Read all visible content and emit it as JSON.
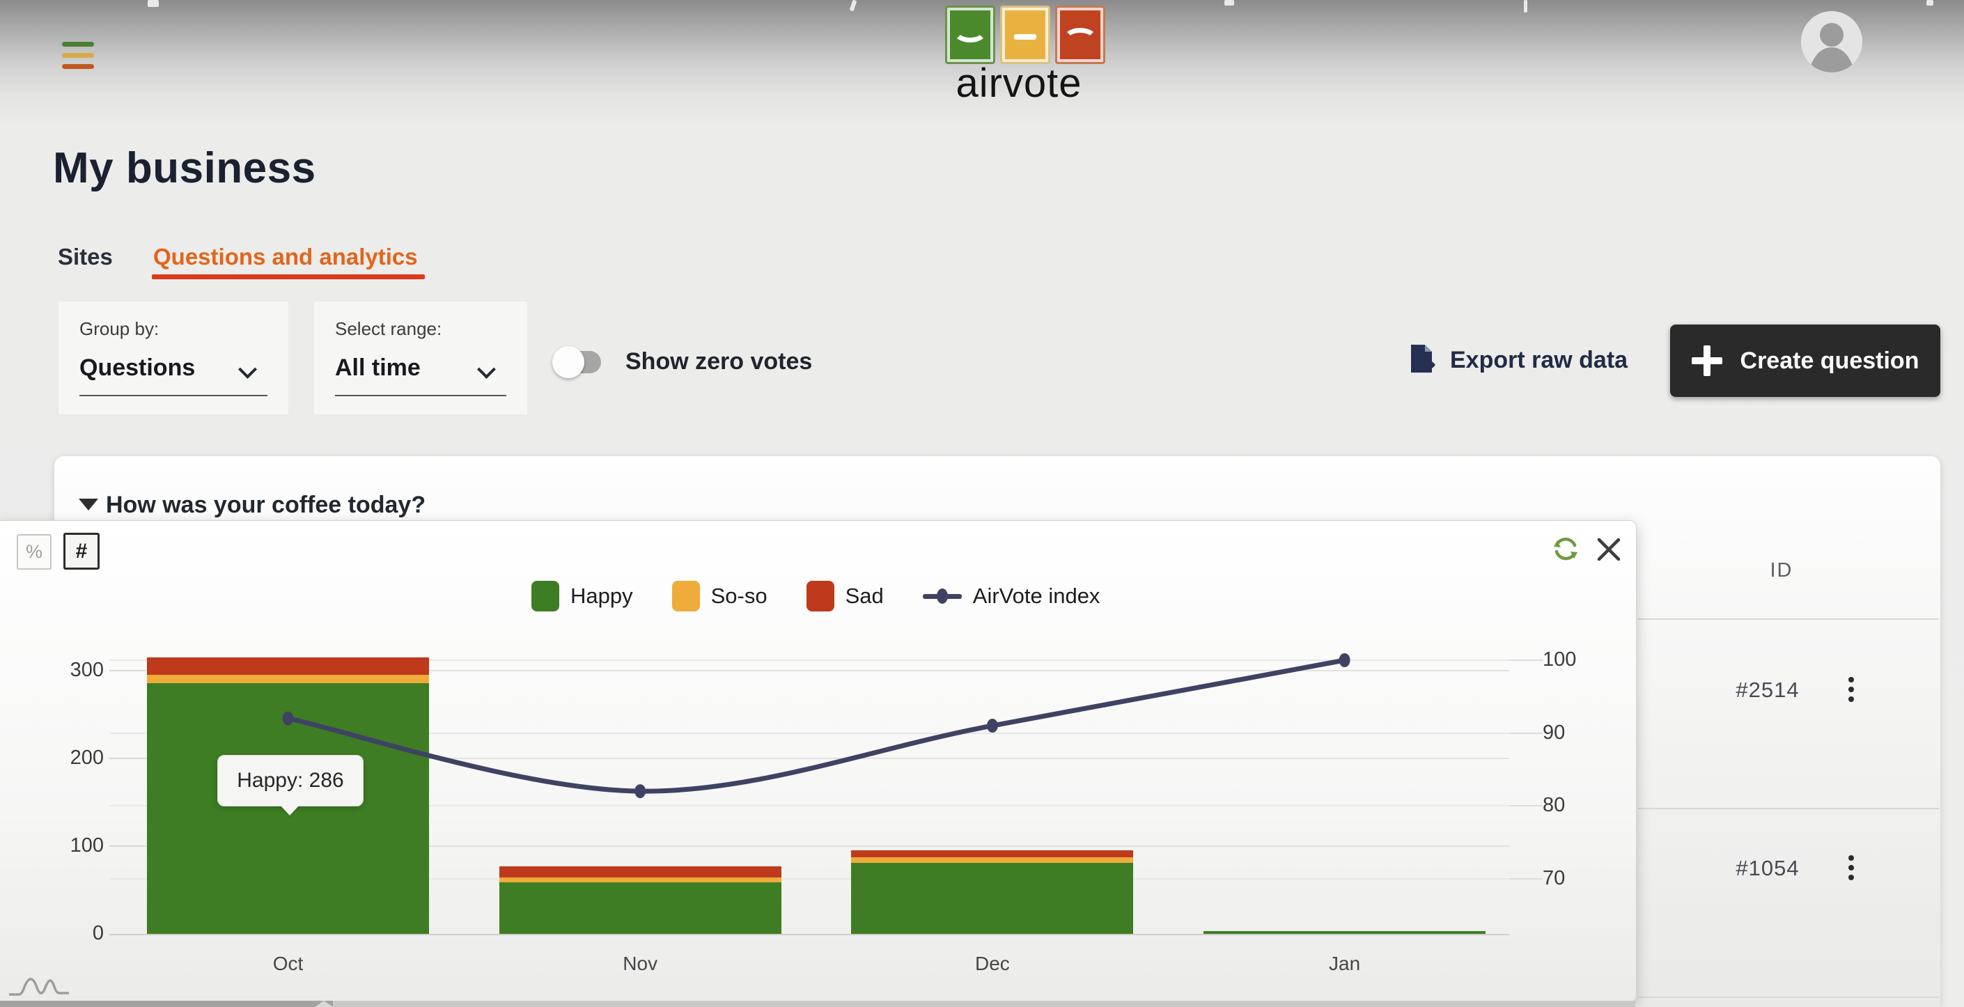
{
  "header": {
    "logo_text": "airvote"
  },
  "page": {
    "title": "My business"
  },
  "tabs": [
    {
      "label": "Sites",
      "active": false
    },
    {
      "label": "Questions and analytics",
      "active": true
    }
  ],
  "filters": {
    "group_by_label": "Group by:",
    "group_by_value": "Questions",
    "range_label": "Select range:",
    "range_value": "All time",
    "show_zero_votes_label": "Show zero votes",
    "show_zero_votes_on": false
  },
  "actions": {
    "export_label": "Export raw data",
    "create_label": "Create question"
  },
  "question": {
    "title": "How was your coffee today?"
  },
  "chart_panel": {
    "percent_button": "%",
    "count_button": "#",
    "icons": [
      "refresh-icon",
      "close-icon"
    ]
  },
  "chart_data": {
    "type": "bar",
    "stacked": true,
    "categories": [
      "Oct",
      "Nov",
      "Dec",
      "Jan"
    ],
    "series": [
      {
        "name": "Happy",
        "color": "#3e7d23",
        "values": [
          286,
          59,
          81,
          3
        ]
      },
      {
        "name": "So-so",
        "color": "#efac3a",
        "values": [
          9,
          5,
          6,
          0
        ]
      },
      {
        "name": "Sad",
        "color": "#bf3a1c",
        "values": [
          20,
          13,
          8,
          0
        ]
      }
    ],
    "line_series": {
      "name": "AirVote index",
      "color": "#3e4363",
      "values": [
        92,
        82,
        91,
        100
      ]
    },
    "left_axis": {
      "ticks": [
        0,
        100,
        200,
        300
      ],
      "max": 340
    },
    "right_axis": {
      "ticks": [
        70,
        80,
        90,
        100
      ]
    },
    "legend_position": "top-center",
    "grid": true,
    "tooltip": {
      "text": "Happy: 286",
      "target": "Oct Happy"
    }
  },
  "table": {
    "id_header": "ID",
    "rows": [
      {
        "id": "#2514"
      },
      {
        "id": "#1054"
      }
    ]
  },
  "colors": {
    "accent_orange": "#e2651b",
    "underline_red": "#dd3a17",
    "happy_green": "#3e7d23",
    "soso_amber": "#efac3a",
    "sad_red": "#bf3a1c",
    "index_line": "#3e4363",
    "create_button_bg": "#2a2a2a",
    "refresh_green": "#6b9c40"
  }
}
